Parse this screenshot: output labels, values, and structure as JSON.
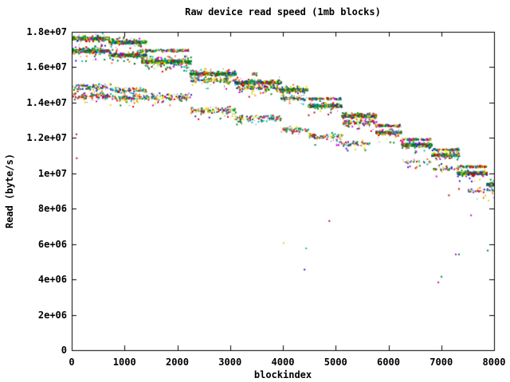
{
  "chart_data": {
    "type": "scatter",
    "title": "Raw device read speed (1mb blocks)",
    "xlabel": "blockindex",
    "ylabel": "Read (byte/s)",
    "xlim": [
      0,
      8000
    ],
    "ylim": [
      0,
      18000000
    ],
    "grid": false,
    "legend": "none",
    "xticks": [
      {
        "value": 0,
        "label": "0"
      },
      {
        "value": 1000,
        "label": "1000"
      },
      {
        "value": 2000,
        "label": "2000"
      },
      {
        "value": 3000,
        "label": "3000"
      },
      {
        "value": 4000,
        "label": "4000"
      },
      {
        "value": 5000,
        "label": "5000"
      },
      {
        "value": 6000,
        "label": "6000"
      },
      {
        "value": 7000,
        "label": "7000"
      },
      {
        "value": 8000,
        "label": "8000"
      }
    ],
    "yticks": [
      {
        "value": 0,
        "label": "0"
      },
      {
        "value": 2000000,
        "label": "2e+06"
      },
      {
        "value": 4000000,
        "label": "4e+06"
      },
      {
        "value": 6000000,
        "label": "6e+06"
      },
      {
        "value": 8000000,
        "label": "8e+06"
      },
      {
        "value": 10000000,
        "label": "1e+07"
      },
      {
        "value": 12000000,
        "label": "1.2e+07"
      },
      {
        "value": 14000000,
        "label": "1.4e+07"
      },
      {
        "value": 16000000,
        "label": "1.6e+07"
      },
      {
        "value": 18000000,
        "label": "1.8e+07"
      }
    ],
    "palette": {
      "green": "#008422",
      "red": "#e00000",
      "blue": "#2020d0",
      "yellow": "#e8d800",
      "cyan": "#00c0c0",
      "magenta": "#d000d0",
      "orange": "#f07800",
      "axis": "#000000",
      "background": "#ffffff"
    },
    "series": [
      {
        "name": "fast-zone-staircase",
        "segments": [
          {
            "x0": 0,
            "x1": 700,
            "v": 17650000,
            "style": "dense"
          },
          {
            "x0": 0,
            "x1": 700,
            "v": 16950000,
            "style": "dense"
          },
          {
            "x0": 700,
            "x1": 1400,
            "v": 17450000,
            "style": "dense"
          },
          {
            "x0": 700,
            "x1": 1400,
            "v": 16720000,
            "style": "dense"
          },
          {
            "x0": 1280,
            "x1": 2210,
            "v": 16980000,
            "style": "speckle"
          },
          {
            "x0": 1310,
            "x1": 2250,
            "v": 16350000,
            "style": "dense",
            "spread": 130000
          },
          {
            "x0": 2230,
            "x1": 3100,
            "v": 15660000,
            "style": "dense"
          },
          {
            "x0": 2230,
            "x1": 3080,
            "v": 15300000,
            "style": "fuzzy",
            "spread": 140000
          },
          {
            "x0": 3080,
            "x1": 3950,
            "v": 15170000,
            "style": "dense"
          },
          {
            "x0": 3100,
            "x1": 3950,
            "v": 14850000,
            "style": "fuzzy",
            "spread": 140000
          },
          {
            "x0": 3410,
            "x1": 3490,
            "v": 15650000,
            "style": "speckle",
            "density": 2
          },
          {
            "x0": 3950,
            "x1": 4450,
            "v": 14760000,
            "style": "dense"
          },
          {
            "x0": 3950,
            "x1": 4450,
            "v": 14280000,
            "style": "fuzzy",
            "spread": 130000
          },
          {
            "x0": 4470,
            "x1": 5100,
            "v": 14250000,
            "style": "speckle"
          },
          {
            "x0": 4470,
            "x1": 5100,
            "v": 13850000,
            "style": "dense"
          },
          {
            "x0": 5110,
            "x1": 5760,
            "v": 13280000,
            "style": "dense"
          },
          {
            "x0": 5110,
            "x1": 5760,
            "v": 12930000,
            "style": "fuzzy",
            "spread": 130000
          },
          {
            "x0": 5750,
            "x1": 6230,
            "v": 12730000,
            "style": "speckle"
          },
          {
            "x0": 5750,
            "x1": 6230,
            "v": 12340000,
            "style": "dense"
          },
          {
            "x0": 6240,
            "x1": 6810,
            "v": 11950000,
            "style": "speckle"
          },
          {
            "x0": 6240,
            "x1": 6810,
            "v": 11640000,
            "style": "dense"
          },
          {
            "x0": 6810,
            "x1": 7330,
            "v": 11380000,
            "style": "speckle"
          },
          {
            "x0": 6810,
            "x1": 7330,
            "v": 11070000,
            "style": "dense"
          },
          {
            "x0": 7290,
            "x1": 7850,
            "v": 10420000,
            "style": "speckle"
          },
          {
            "x0": 7290,
            "x1": 7850,
            "v": 10050000,
            "style": "dense"
          },
          {
            "x0": 7850,
            "x1": 8000,
            "v": 9420000,
            "style": "dense"
          }
        ]
      },
      {
        "name": "slow-zone-staircase",
        "segments": [
          {
            "x0": 0,
            "x1": 750,
            "v": 14920000,
            "style": "fuzzy"
          },
          {
            "x0": 0,
            "x1": 750,
            "v": 14400000,
            "style": "fuzzy"
          },
          {
            "x0": 750,
            "x1": 1400,
            "v": 14720000,
            "style": "fuzzy"
          },
          {
            "x0": 750,
            "x1": 1400,
            "v": 14300000,
            "style": "fuzzy"
          },
          {
            "x0": 1400,
            "x1": 2250,
            "v": 14350000,
            "style": "fuzzy",
            "spread": 250000
          },
          {
            "x0": 2250,
            "x1": 3100,
            "v": 13600000,
            "style": "fuzzy"
          },
          {
            "x0": 3080,
            "x1": 3950,
            "v": 13150000,
            "style": "fuzzy",
            "spread": 210000
          },
          {
            "x0": 3950,
            "x1": 4480,
            "v": 12500000,
            "style": "fuzzy",
            "spread": 160000
          },
          {
            "x0": 4480,
            "x1": 5140,
            "v": 12150000,
            "style": "fuzzy",
            "spread": 200000,
            "density": 0.9
          },
          {
            "x0": 5000,
            "x1": 5660,
            "v": 11700000,
            "style": "fuzzy",
            "spread": 180000,
            "density": 0.7
          },
          {
            "x0": 6260,
            "x1": 6800,
            "v": 10700000,
            "style": "fuzzy",
            "spread": 160000,
            "density": 0.45
          },
          {
            "x0": 6810,
            "x1": 7290,
            "v": 10300000,
            "style": "fuzzy",
            "spread": 150000,
            "density": 0.45
          },
          {
            "x0": 7500,
            "x1": 8000,
            "v": 9050000,
            "style": "fuzzy",
            "spread": 150000,
            "density": 0.5
          }
        ]
      }
    ],
    "stray_points": [
      {
        "x": 75,
        "v": 12250000,
        "color": "red"
      },
      {
        "x": 80,
        "v": 10900000,
        "color": "red"
      },
      {
        "x": 4000,
        "v": 6100000,
        "color": "yellow"
      },
      {
        "x": 4865,
        "v": 7350000,
        "color": "red"
      },
      {
        "x": 4425,
        "v": 5800000,
        "color": "cyan"
      },
      {
        "x": 4395,
        "v": 4600000,
        "color": "blue"
      },
      {
        "x": 7550,
        "v": 7670000,
        "color": "magenta"
      },
      {
        "x": 7260,
        "v": 5460000,
        "color": "magenta"
      },
      {
        "x": 7320,
        "v": 5460000,
        "color": "green"
      },
      {
        "x": 7865,
        "v": 5680000,
        "color": "green"
      },
      {
        "x": 6990,
        "v": 4200000,
        "color": "green"
      },
      {
        "x": 6930,
        "v": 3880000,
        "color": "magenta"
      },
      {
        "x": 7320,
        "v": 9160000,
        "color": "red"
      },
      {
        "x": 7880,
        "v": 8500000,
        "color": "yellow"
      },
      {
        "x": 7130,
        "v": 8800000,
        "color": "red"
      }
    ]
  }
}
